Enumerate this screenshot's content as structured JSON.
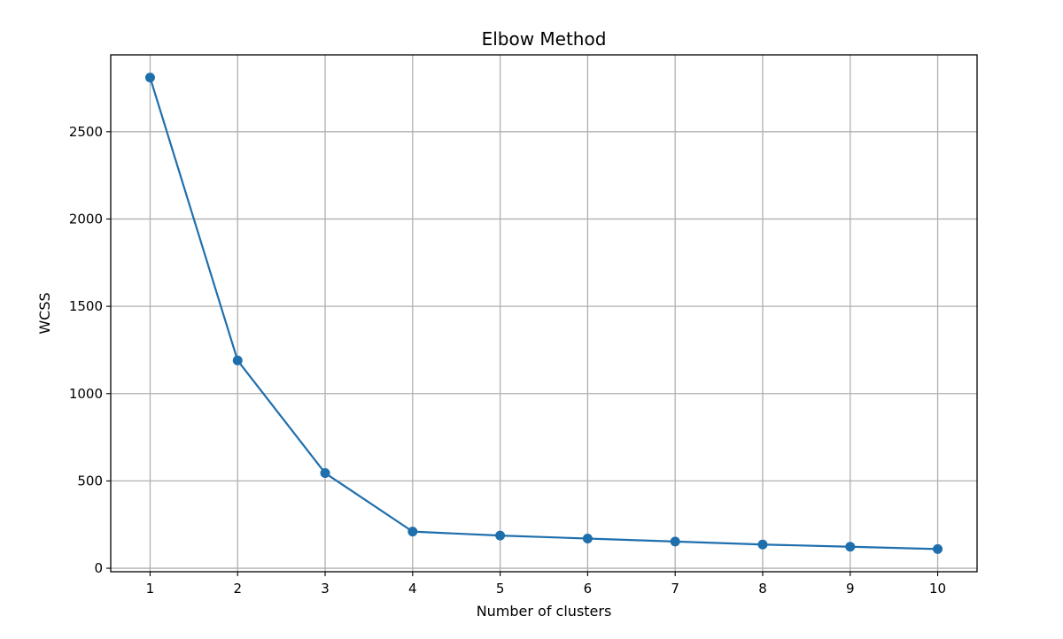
{
  "chart_data": {
    "type": "line",
    "title": "Elbow Method",
    "xlabel": "Number of clusters",
    "ylabel": "WCSS",
    "x": [
      1,
      2,
      3,
      4,
      5,
      6,
      7,
      8,
      9,
      10
    ],
    "series": [
      {
        "values": [
          2810,
          1190,
          545,
          210,
          187,
          170,
          153,
          136,
          123,
          110
        ],
        "color": "#1f6fad",
        "marker": "circle"
      }
    ],
    "xticks": [
      1,
      2,
      3,
      4,
      5,
      6,
      7,
      8,
      9,
      10
    ],
    "yticks": [
      0,
      500,
      1000,
      1500,
      2000,
      2500
    ],
    "xlim": [
      0.55,
      10.45
    ],
    "ylim": [
      -20,
      2940
    ],
    "grid": true
  }
}
